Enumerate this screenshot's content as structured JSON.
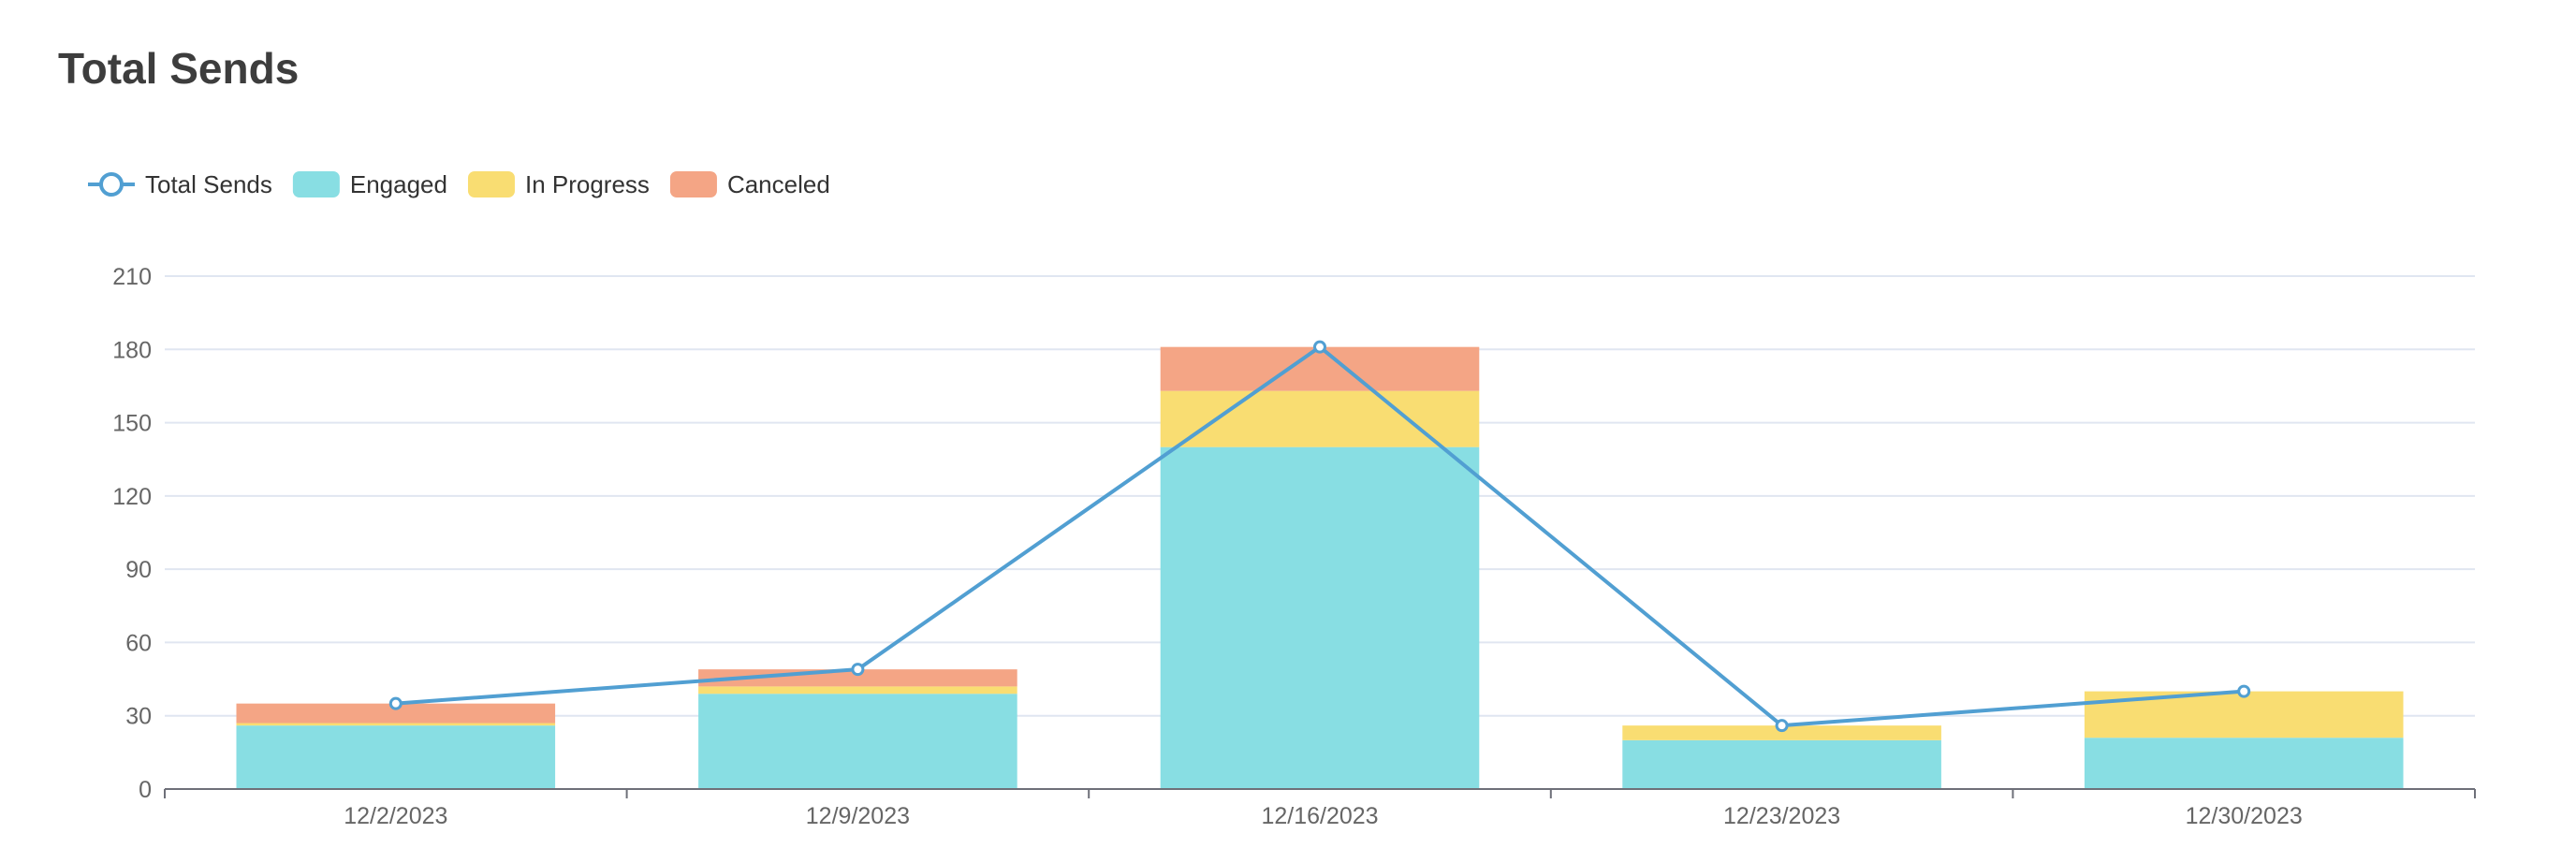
{
  "page": {
    "title": "Total Sends"
  },
  "chart_data": {
    "type": "bar",
    "stacked": true,
    "categories": [
      "12/2/2023",
      "12/9/2023",
      "12/16/2023",
      "12/23/2023",
      "12/30/2023"
    ],
    "series": [
      {
        "name": "Engaged",
        "type": "bar",
        "color": "#88dee3",
        "values": [
          26,
          39,
          140,
          20,
          21
        ]
      },
      {
        "name": "In Progress",
        "type": "bar",
        "color": "#f9dd72",
        "values": [
          1,
          3,
          23,
          6,
          19
        ]
      },
      {
        "name": "Canceled",
        "type": "bar",
        "color": "#f4a585",
        "values": [
          8,
          7,
          18,
          0,
          0
        ]
      },
      {
        "name": "Total Sends",
        "type": "line",
        "color": "#519fd2",
        "values": [
          35,
          49,
          181,
          26,
          40
        ]
      }
    ],
    "legend": {
      "position": "top-left",
      "order": [
        "Total Sends",
        "Engaged",
        "In Progress",
        "Canceled"
      ]
    },
    "yticks": [
      "0",
      "30",
      "60",
      "90",
      "120",
      "150",
      "180",
      "210"
    ],
    "ylim": [
      0,
      210
    ],
    "grid": true,
    "xlabel": "",
    "ylabel": ""
  }
}
